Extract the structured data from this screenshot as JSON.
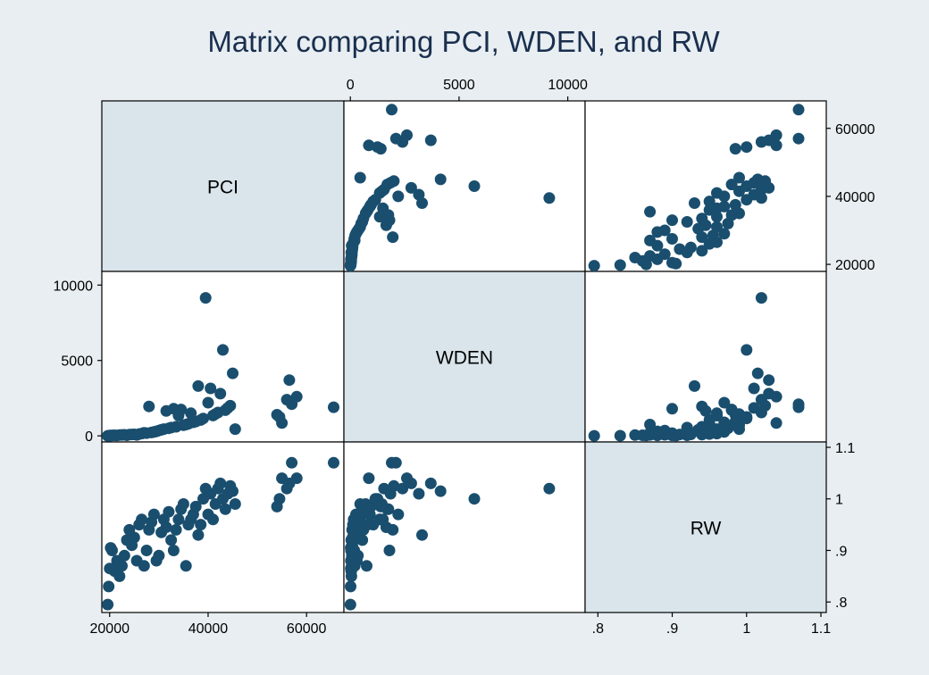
{
  "chart_data": {
    "type": "scatter",
    "subtype": "scatter-matrix",
    "title": "Matrix comparing PCI, WDEN, and RW",
    "colors": {
      "background": "#e8eef2",
      "diagonal": "#d9e5eb",
      "point": "#1a4e6e",
      "title": "#1a2f4e"
    },
    "variables": [
      {
        "name": "PCI",
        "range": [
          19500,
          66500
        ],
        "ticks": [
          20000,
          40000,
          60000
        ],
        "tick_labels": [
          "20000",
          "40000",
          "60000"
        ]
      },
      {
        "name": "WDEN",
        "range": [
          -50,
          10550
        ],
        "ticks": [
          0,
          5000,
          10000
        ],
        "tick_labels": [
          "0",
          "5000",
          "10000"
        ]
      },
      {
        "name": "RW",
        "range": [
          0.79,
          1.1
        ],
        "ticks": [
          0.8,
          0.9,
          1,
          1.1
        ],
        "tick_labels": [
          ".8",
          ".9",
          "1",
          "1.1"
        ]
      }
    ],
    "points": [
      [
        19600,
        5,
        0.795
      ],
      [
        19800,
        10,
        0.83
      ],
      [
        20000,
        20,
        0.865
      ],
      [
        20200,
        15,
        0.905
      ],
      [
        20500,
        30,
        0.9
      ],
      [
        21000,
        40,
        0.86
      ],
      [
        21500,
        25,
        0.88
      ],
      [
        22000,
        50,
        0.85
      ],
      [
        22500,
        60,
        0.87
      ],
      [
        23000,
        70,
        0.89
      ],
      [
        23500,
        40,
        0.92
      ],
      [
        24000,
        80,
        0.94
      ],
      [
        24500,
        90,
        0.91
      ],
      [
        25000,
        100,
        0.925
      ],
      [
        25500,
        60,
        0.88
      ],
      [
        26000,
        120,
        0.95
      ],
      [
        26500,
        150,
        0.96
      ],
      [
        27000,
        200,
        0.87
      ],
      [
        27500,
        180,
        0.9
      ],
      [
        28000,
        1950,
        0.94
      ],
      [
        28500,
        220,
        0.955
      ],
      [
        29000,
        260,
        0.97
      ],
      [
        29500,
        300,
        0.88
      ],
      [
        30000,
        350,
        0.89
      ],
      [
        30500,
        400,
        0.935
      ],
      [
        31000,
        450,
        0.96
      ],
      [
        31500,
        1650,
        0.945
      ],
      [
        32000,
        500,
        0.975
      ],
      [
        32500,
        550,
        0.92
      ],
      [
        33000,
        1800,
        0.9
      ],
      [
        33500,
        600,
        0.94
      ],
      [
        34000,
        1350,
        0.96
      ],
      [
        34500,
        1750,
        0.98
      ],
      [
        35000,
        700,
        0.99
      ],
      [
        35500,
        750,
        0.87
      ],
      [
        36000,
        800,
        0.95
      ],
      [
        36500,
        1500,
        0.96
      ],
      [
        37000,
        900,
        0.97
      ],
      [
        37500,
        950,
        0.985
      ],
      [
        38000,
        3300,
        0.93
      ],
      [
        38500,
        1050,
        0.95
      ],
      [
        39000,
        1150,
        1.0
      ],
      [
        39500,
        9150,
        1.02
      ],
      [
        40000,
        2200,
        0.97
      ],
      [
        40500,
        3150,
        1.01
      ],
      [
        41000,
        1350,
        0.96
      ],
      [
        41500,
        1450,
        0.99
      ],
      [
        42000,
        1550,
        1.02
      ],
      [
        42500,
        2800,
        1.03
      ],
      [
        43000,
        5700,
        1.0
      ],
      [
        43500,
        1700,
        0.98
      ],
      [
        44000,
        1850,
        1.01
      ],
      [
        44500,
        2000,
        1.025
      ],
      [
        45000,
        4150,
        1.015
      ],
      [
        45500,
        450,
        0.99
      ],
      [
        54000,
        1400,
        0.985
      ],
      [
        54500,
        1250,
        1.0
      ],
      [
        55000,
        850,
        1.04
      ],
      [
        56000,
        2400,
        1.02
      ],
      [
        56500,
        3700,
        1.03
      ],
      [
        57000,
        2100,
        1.07
      ],
      [
        58000,
        2600,
        1.04
      ],
      [
        65500,
        1900,
        1.07
      ]
    ]
  }
}
